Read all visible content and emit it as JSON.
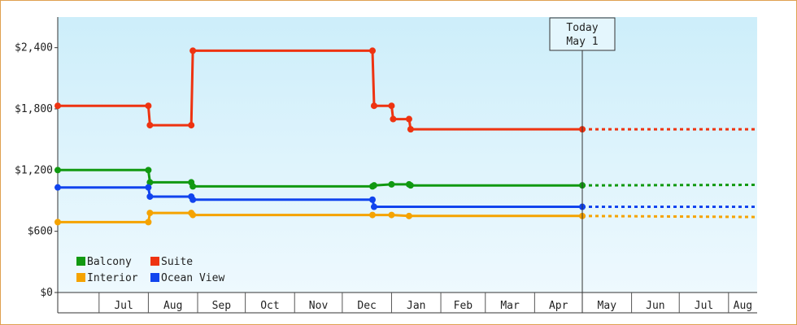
{
  "chart_data": {
    "type": "line",
    "y_ticks": [
      "$0",
      "$600",
      "$1,200",
      "$1,800",
      "$2,400"
    ],
    "ylim": [
      0,
      2700
    ],
    "x_ticks": [
      "Jul",
      "Aug",
      "Sep",
      "Oct",
      "Nov",
      "Dec",
      "Jan",
      "Feb",
      "Mar",
      "Apr",
      "May",
      "Jun",
      "Jul",
      "Aug"
    ],
    "xlim": [
      "2012-06-05",
      "2013-08-19"
    ],
    "today_marker": {
      "date": "2013-05-01",
      "line1": "Today",
      "line2": "May 1"
    },
    "colors": {
      "Balcony": "#119911",
      "Suite": "#ee3311",
      "Interior": "#f5a300",
      "Ocean View": "#1144ee"
    },
    "legend": {
      "placement": "bottom-left",
      "items": [
        {
          "label": "Balcony",
          "color": "#119911"
        },
        {
          "label": "Suite",
          "color": "#ee3311"
        },
        {
          "label": "Interior",
          "color": "#f5a300"
        },
        {
          "label": "Ocean View",
          "color": "#1144ee"
        }
      ]
    },
    "series": [
      {
        "name": "Suite",
        "color": "#ee3311",
        "points": [
          [
            "2012-06-05",
            1830
          ],
          [
            "2012-08-01",
            1830
          ],
          [
            "2012-08-02",
            1640
          ],
          [
            "2012-08-28",
            1640
          ],
          [
            "2012-08-29",
            2370
          ],
          [
            "2012-12-20",
            2370
          ],
          [
            "2012-12-21",
            1830
          ],
          [
            "2013-01-01",
            1830
          ],
          [
            "2013-01-02",
            1700
          ],
          [
            "2013-01-12",
            1700
          ],
          [
            "2013-01-13",
            1600
          ],
          [
            "2013-05-01",
            1600
          ]
        ],
        "projection": [
          [
            "2013-05-01",
            1600
          ],
          [
            "2013-08-19",
            1600
          ]
        ]
      },
      {
        "name": "Balcony",
        "color": "#119911",
        "points": [
          [
            "2012-06-05",
            1200
          ],
          [
            "2012-08-01",
            1200
          ],
          [
            "2012-08-02",
            1080
          ],
          [
            "2012-08-28",
            1080
          ],
          [
            "2012-08-29",
            1040
          ],
          [
            "2012-12-20",
            1040
          ],
          [
            "2012-12-21",
            1050
          ],
          [
            "2013-01-01",
            1060
          ],
          [
            "2013-01-12",
            1060
          ],
          [
            "2013-01-13",
            1050
          ],
          [
            "2013-05-01",
            1050
          ]
        ],
        "projection": [
          [
            "2013-05-01",
            1050
          ],
          [
            "2013-08-19",
            1055
          ]
        ]
      },
      {
        "name": "Ocean View",
        "color": "#1144ee",
        "points": [
          [
            "2012-06-05",
            1030
          ],
          [
            "2012-08-01",
            1030
          ],
          [
            "2012-08-02",
            940
          ],
          [
            "2012-08-28",
            940
          ],
          [
            "2012-08-29",
            910
          ],
          [
            "2012-12-20",
            910
          ],
          [
            "2012-12-21",
            840
          ],
          [
            "2013-05-01",
            840
          ]
        ],
        "projection": [
          [
            "2013-05-01",
            840
          ],
          [
            "2013-08-19",
            840
          ]
        ]
      },
      {
        "name": "Interior",
        "color": "#f5a300",
        "points": [
          [
            "2012-06-05",
            690
          ],
          [
            "2012-08-01",
            690
          ],
          [
            "2012-08-02",
            780
          ],
          [
            "2012-08-28",
            780
          ],
          [
            "2012-08-29",
            760
          ],
          [
            "2012-12-20",
            760
          ],
          [
            "2013-01-01",
            760
          ],
          [
            "2013-01-12",
            750
          ],
          [
            "2013-05-01",
            750
          ]
        ],
        "projection": [
          [
            "2013-05-01",
            750
          ],
          [
            "2013-08-19",
            740
          ]
        ]
      }
    ],
    "markers": {
      "Suite": [
        "2012-06-05",
        "2012-08-01",
        "2012-08-02",
        "2012-08-28",
        "2012-08-29",
        "2012-12-20",
        "2012-12-21",
        "2013-01-01",
        "2013-01-02",
        "2013-01-12",
        "2013-01-13",
        "2013-05-01"
      ],
      "Balcony": [
        "2012-06-05",
        "2012-08-01",
        "2012-08-02",
        "2012-08-28",
        "2012-08-29",
        "2012-12-20",
        "2012-12-21",
        "2013-01-01",
        "2013-01-12",
        "2013-01-13",
        "2013-05-01"
      ],
      "Ocean View": [
        "2012-06-05",
        "2012-08-01",
        "2012-08-02",
        "2012-08-28",
        "2012-08-29",
        "2012-12-20",
        "2012-12-21",
        "2013-01-01",
        "2013-01-12",
        "2013-05-01"
      ],
      "Interior": [
        "2012-06-05",
        "2012-08-01",
        "2012-08-02",
        "2012-08-28",
        "2012-08-29",
        "2012-12-20",
        "2013-01-01",
        "2013-01-12",
        "2013-05-01"
      ]
    }
  }
}
